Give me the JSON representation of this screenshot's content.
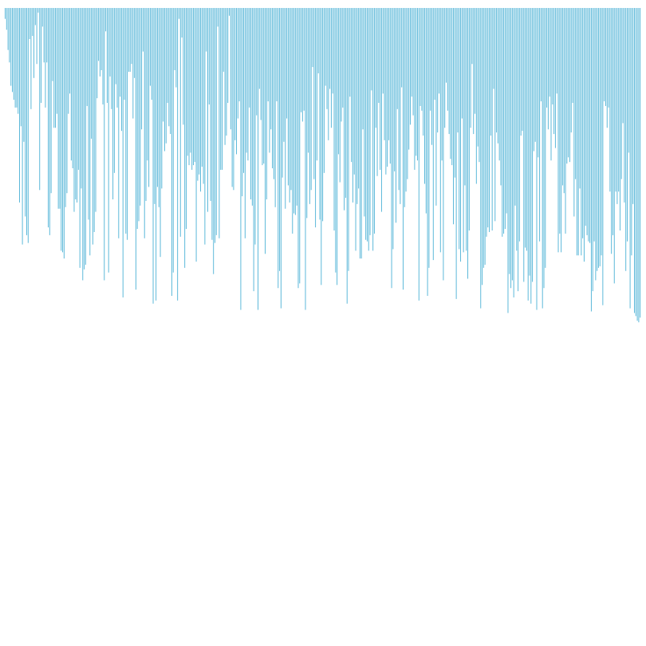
{
  "chart_data": {
    "type": "bar",
    "orientation": "vertical",
    "baseline": "top",
    "color": "#5bb8d9",
    "grid": false,
    "axes_visible": false,
    "title": "",
    "xlabel": "",
    "ylabel": "",
    "ylim": [
      0,
      410
    ],
    "values": [
      14,
      28,
      54,
      70,
      100,
      108,
      118,
      128,
      128,
      136,
      250,
      152,
      304,
      172,
      268,
      292,
      302,
      40,
      130,
      36,
      90,
      22,
      72,
      6,
      234,
      122,
      24,
      70,
      128,
      70,
      282,
      292,
      238,
      94,
      154,
      154,
      136,
      258,
      258,
      312,
      314,
      322,
      256,
      238,
      136,
      110,
      196,
      206,
      262,
      246,
      250,
      208,
      334,
      232,
      350,
      336,
      330,
      126,
      272,
      318,
      168,
      304,
      288,
      262,
      116,
      68,
      88,
      80,
      124,
      350,
      30,
      122,
      340,
      88,
      130,
      246,
      212,
      98,
      128,
      296,
      114,
      158,
      372,
      118,
      290,
      298,
      82,
      82,
      72,
      142,
      90,
      362,
      284,
      274,
      254,
      156,
      56,
      296,
      248,
      196,
      230,
      100,
      118,
      380,
      252,
      376,
      230,
      256,
      320,
      232,
      146,
      184,
      174,
      122,
      152,
      162,
      370,
      340,
      80,
      102,
      376,
      14,
      294,
      38,
      150,
      334,
      284,
      190,
      202,
      186,
      208,
      202,
      198,
      326,
      222,
      214,
      236,
      204,
      226,
      304,
      56,
      262,
      124,
      248,
      298,
      342,
      302,
      292,
      24,
      296,
      208,
      208,
      82,
      176,
      164,
      122,
      10,
      156,
      230,
      234,
      170,
      188,
      142,
      120,
      388,
      242,
      212,
      296,
      186,
      196,
      128,
      246,
      254,
      364,
      304,
      138,
      388,
      104,
      144,
      202,
      200,
      316,
      246,
      120,
      186,
      156,
      206,
      220,
      256,
      120,
      360,
      338,
      386,
      218,
      172,
      258,
      142,
      228,
      250,
      234,
      290,
      264,
      266,
      254,
      360,
      354,
      134,
      146,
      132,
      388,
      270,
      186,
      252,
      234,
      76,
      220,
      282,
      196,
      84,
      272,
      356,
      274,
      212,
      100,
      130,
      170,
      104,
      154,
      110,
      286,
      340,
      356,
      188,
      224,
      146,
      128,
      260,
      244,
      380,
      338,
      114,
      198,
      250,
      214,
      312,
      252,
      232,
      322,
      322,
      156,
      268,
      298,
      300,
      312,
      292,
      106,
      312,
      290,
      154,
      216,
      122,
      208,
      262,
      110,
      170,
      214,
      204,
      170,
      200,
      360,
      310,
      210,
      276,
      130,
      234,
      252,
      102,
      362,
      256,
      236,
      220,
      182,
      150,
      114,
      138,
      208,
      190,
      196,
      376,
      126,
      132,
      164,
      226,
      264,
      370,
      334,
      132,
      176,
      324,
      118,
      254,
      160,
      110,
      314,
      196,
      350,
      154,
      96,
      132,
      162,
      194,
      202,
      278,
      218,
      374,
      160,
      310,
      326,
      142,
      314,
      228,
      312,
      348,
      286,
      154,
      72,
      162,
      136,
      226,
      178,
      198,
      386,
      356,
      334,
      330,
      294,
      282,
      288,
      164,
      286,
      104,
      274,
      160,
      174,
      196,
      228,
      294,
      290,
      284,
      264,
      392,
      342,
      360,
      350,
      372,
      254,
      312,
      364,
      300,
      164,
      158,
      352,
      308,
      312,
      376,
      344,
      380,
      352,
      184,
      172,
      388,
      192,
      300,
      120,
      386,
      360,
      334,
      128,
      156,
      114,
      196,
      124,
      162,
      180,
      110,
      314,
      290,
      314,
      228,
      238,
      290,
      200,
      192,
      198,
      160,
      122,
      268,
      220,
      318,
      318,
      232,
      318,
      296,
      326,
      280,
      292,
      300,
      302,
      390,
      364,
      300,
      350,
      338,
      334,
      332,
      318,
      382,
      120,
      126,
      154,
      128,
      236,
      316,
      292,
      354,
      236,
      252,
      236,
      286,
      220,
      148,
      250,
      338,
      300,
      186,
      386,
      318,
      252,
      392,
      396,
      402,
      404,
      398
    ]
  }
}
